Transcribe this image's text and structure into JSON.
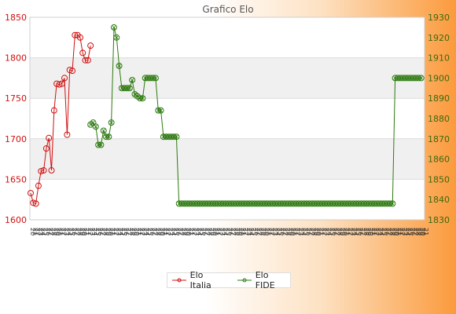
{
  "chart_data": {
    "type": "line",
    "title": "Grafico Elo",
    "xlabel": "",
    "ylabel": "",
    "left_axis": {
      "min": 1600,
      "max": 1850,
      "ticks": [
        1600,
        1650,
        1700,
        1750,
        1800,
        1850
      ]
    },
    "right_axis": {
      "min": 1830,
      "max": 1930,
      "ticks": [
        1830,
        1840,
        1850,
        1860,
        1870,
        1880,
        1890,
        1900,
        1910,
        1920,
        1930
      ]
    },
    "grid": true,
    "legend_position": "bottom-center",
    "point_count": 152,
    "series": [
      {
        "name": "Elo Italia",
        "color": "#d01010",
        "axis": "left",
        "values": [
          1633,
          1621,
          1620,
          1642,
          1660,
          1661,
          1688,
          1701,
          1661,
          1735,
          1768,
          1767,
          1768,
          1775,
          1705,
          1785,
          1784,
          1828,
          1828,
          1825,
          1806,
          1797,
          1797,
          1815
        ]
      },
      {
        "name": "Elo FIDE",
        "color": "#2e7a10",
        "axis": "right",
        "start_index": 23,
        "values": [
          1877,
          1878,
          1876,
          1867,
          1867,
          1874,
          1871,
          1871,
          1878,
          1925,
          1920,
          1906,
          1895,
          1895,
          1895,
          1895,
          1899,
          1892,
          1891,
          1890,
          1890,
          1900,
          1900,
          1900,
          1900,
          1900,
          1884,
          1884,
          1871,
          1871,
          1871,
          1871,
          1871,
          1871,
          1838
        ],
        "flat_tail": {
          "count": 82,
          "value": 1838
        },
        "jump_tail": {
          "count": 11,
          "value": 1900
        }
      }
    ]
  },
  "legend": {
    "italia": "Elo Italia",
    "fide": "Elo FIDE"
  }
}
